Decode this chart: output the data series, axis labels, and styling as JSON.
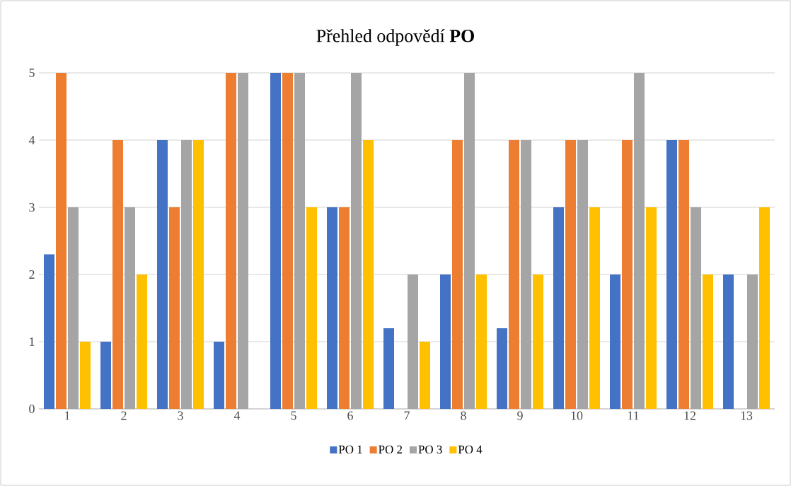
{
  "chart_data": {
    "type": "bar",
    "title": "Přehled odpovědí **PO**",
    "categories": [
      "1",
      "2",
      "3",
      "4",
      "5",
      "6",
      "7",
      "8",
      "9",
      "10",
      "11",
      "12",
      "13"
    ],
    "series": [
      {
        "name": "PO 1",
        "color": "#4472c4",
        "values": [
          2.3,
          1,
          4,
          1,
          5,
          3,
          1.2,
          2,
          1.2,
          3,
          2,
          4,
          2
        ]
      },
      {
        "name": "PO 2",
        "color": "#ed7d31",
        "values": [
          5,
          4,
          3,
          5,
          5,
          3,
          0,
          4,
          4,
          4,
          4,
          4,
          0
        ]
      },
      {
        "name": "PO 3",
        "color": "#a5a5a5",
        "values": [
          3,
          3,
          4,
          5,
          5,
          5,
          2,
          5,
          4,
          4,
          5,
          3,
          2
        ]
      },
      {
        "name": "PO 4",
        "color": "#ffc000",
        "values": [
          1,
          2,
          4,
          0,
          3,
          4,
          1,
          2,
          2,
          3,
          3,
          2,
          3
        ]
      }
    ],
    "ylim": [
      0,
      5
    ],
    "yticks": [
      0,
      1,
      2,
      3,
      4,
      5
    ],
    "grid": "y",
    "legend": "bottom"
  }
}
